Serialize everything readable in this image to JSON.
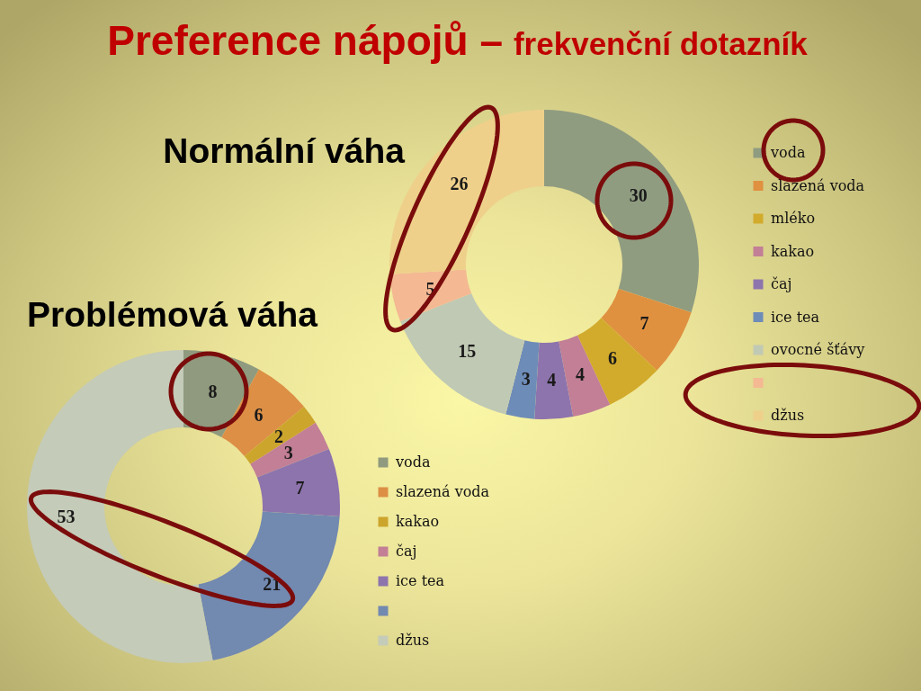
{
  "chart_data": [
    {
      "type": "other",
      "title": "Preference nápojů –",
      "subtitle": "frekvenční dotazník"
    },
    {
      "type": "donut",
      "title": "Normální váha",
      "categories": [
        "voda",
        "slazená voda",
        "mléko",
        "kakao",
        "čaj",
        "ice tea",
        "ovocné šťávy",
        null,
        "džus"
      ],
      "values": [
        30,
        7,
        6,
        4,
        4,
        3,
        15,
        5,
        26
      ],
      "colors": [
        "#8f9c80",
        "#df9140",
        "#d2ab2c",
        "#c27f96",
        "#8e74ad",
        "#6e8cb8",
        "#c0c9b4",
        "#f4b893",
        "#eed08b"
      ],
      "data_labels": true,
      "legend": "right"
    },
    {
      "type": "donut",
      "title": "Problémová váha",
      "categories": [
        "voda",
        "slazená voda",
        "kakao",
        "čaj",
        "ice tea",
        null,
        "džus"
      ],
      "values": [
        8,
        6,
        2,
        3,
        7,
        21,
        53
      ],
      "colors": [
        "#8f9a7e",
        "#dc8f45",
        "#cca52c",
        "#c27f96",
        "#8e74ad",
        "#7289b0",
        "#c4cbb8"
      ],
      "data_labels": true,
      "legend": "right"
    }
  ]
}
